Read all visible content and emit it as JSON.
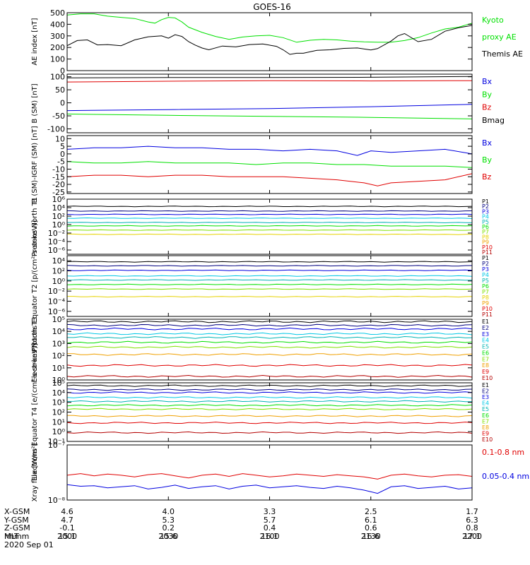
{
  "title": "GOES-16",
  "date": "2020 Sep 01",
  "colors": {
    "black": "#000000",
    "red": "#e00000",
    "green": "#00e000",
    "blue": "#0000e0",
    "navy": "#000080",
    "cyan": "#00c8e6",
    "teal": "#00b4b4",
    "lime": "#80e000",
    "yellow": "#e6d200",
    "orange": "#f0a000",
    "darkred": "#b40000"
  },
  "ephemeris": {
    "labels": [
      "X-GSM",
      "Y-GSM",
      "Z-GSM",
      "MLT",
      "hhmm"
    ],
    "ticks": [
      {
        "t": 0,
        "values": [
          "4.6",
          "4.7",
          "-0.1",
          "15.1",
          "2000"
        ]
      },
      {
        "t": 30,
        "values": [
          "4.0",
          "5.3",
          "0.2",
          "15.6",
          "2030"
        ]
      },
      {
        "t": 60,
        "values": [
          "3.3",
          "5.7",
          "0.4",
          "16.1",
          "2100"
        ]
      },
      {
        "t": 90,
        "values": [
          "2.5",
          "6.1",
          "0.6",
          "16.6",
          "2130"
        ]
      },
      {
        "t": 120,
        "values": [
          "1.7",
          "6.3",
          "0.8",
          "17.1",
          "2200"
        ]
      }
    ]
  },
  "chart_data": [
    {
      "type": "line",
      "ylabel": "AE index [nT]",
      "xlim": [
        0,
        120
      ],
      "ylim": [
        0,
        500
      ],
      "yticks": [
        0,
        100,
        200,
        300,
        400,
        500
      ],
      "legend": [
        {
          "text": "Kyoto",
          "color": "#00e000"
        },
        {
          "text": "proxy AE",
          "color": "#00e000"
        },
        {
          "text": "Themis AE",
          "color": "#000000"
        }
      ],
      "series": [
        {
          "name": "Kyoto proxy AE",
          "color": "#00e000",
          "x": [
            0,
            4,
            8,
            12,
            16,
            20,
            24,
            26,
            28,
            30,
            32,
            34,
            36,
            40,
            44,
            48,
            52,
            56,
            60,
            64,
            68,
            72,
            76,
            80,
            84,
            88,
            92,
            96,
            100,
            104,
            108,
            112,
            116,
            120
          ],
          "y": [
            480,
            490,
            490,
            470,
            460,
            450,
            420,
            410,
            440,
            460,
            455,
            420,
            375,
            330,
            295,
            270,
            290,
            300,
            305,
            285,
            245,
            262,
            270,
            265,
            255,
            248,
            245,
            245,
            260,
            285,
            325,
            360,
            375,
            410
          ]
        },
        {
          "name": "Themis AE",
          "color": "#000000",
          "x": [
            0,
            3,
            6,
            9,
            12,
            16,
            20,
            24,
            28,
            30,
            32,
            34,
            36,
            38,
            40,
            42,
            46,
            50,
            54,
            58,
            62,
            64,
            66,
            68,
            70,
            74,
            78,
            82,
            86,
            90,
            92,
            96,
            98,
            100,
            104,
            108,
            112,
            116,
            120
          ],
          "y": [
            215,
            260,
            265,
            222,
            225,
            215,
            265,
            292,
            300,
            280,
            310,
            295,
            250,
            220,
            195,
            180,
            212,
            205,
            225,
            230,
            210,
            180,
            140,
            150,
            150,
            175,
            180,
            192,
            196,
            178,
            190,
            255,
            300,
            320,
            250,
            270,
            340,
            370,
            390
          ]
        }
      ]
    },
    {
      "type": "line",
      "ylabel": "B (SM) [nT]",
      "xlim": [
        0,
        120
      ],
      "ylim": [
        -115,
        110
      ],
      "yticks": [
        -100,
        -50,
        0,
        50,
        100
      ],
      "legend": [
        {
          "text": "Bx",
          "color": "#0000e0"
        },
        {
          "text": "By",
          "color": "#00e000"
        },
        {
          "text": "Bz",
          "color": "#e00000"
        },
        {
          "text": "Bmag",
          "color": "#000000"
        }
      ],
      "series": [
        {
          "name": "Bmag",
          "color": "#000000",
          "x": [
            0,
            30,
            60,
            90,
            120
          ],
          "y": [
            96,
            97,
            97,
            98,
            101
          ]
        },
        {
          "name": "Bz",
          "color": "#e00000",
          "x": [
            0,
            30,
            60,
            90,
            120
          ],
          "y": [
            80,
            83,
            85,
            84,
            85
          ]
        },
        {
          "name": "Bx",
          "color": "#0000e0",
          "x": [
            0,
            30,
            60,
            90,
            120
          ],
          "y": [
            -30,
            -26,
            -22,
            -15,
            -6
          ]
        },
        {
          "name": "By",
          "color": "#00e000",
          "x": [
            0,
            30,
            60,
            90,
            120
          ],
          "y": [
            -43,
            -48,
            -52,
            -56,
            -62
          ]
        }
      ]
    },
    {
      "type": "line",
      "ylabel": "B (SM)-IGRF (SM) [nT]",
      "xlim": [
        0,
        120
      ],
      "ylim": [
        -26,
        12
      ],
      "yticks": [
        -25,
        -20,
        -15,
        -10,
        -5,
        0,
        5,
        10
      ],
      "legend": [
        {
          "text": "Bx",
          "color": "#0000e0"
        },
        {
          "text": "By",
          "color": "#00e000"
        },
        {
          "text": "Bz",
          "color": "#e00000"
        }
      ],
      "series": [
        {
          "name": "Bx",
          "color": "#0000e0",
          "x": [
            0,
            8,
            16,
            24,
            32,
            40,
            48,
            56,
            64,
            72,
            80,
            86,
            90,
            96,
            104,
            112,
            120
          ],
          "y": [
            3,
            4,
            4,
            5,
            4,
            4,
            3,
            3,
            2,
            3,
            2,
            -1,
            2,
            1,
            2,
            3,
            0
          ]
        },
        {
          "name": "By",
          "color": "#00e000",
          "x": [
            0,
            8,
            16,
            24,
            32,
            40,
            48,
            56,
            64,
            72,
            80,
            88,
            96,
            104,
            112,
            120
          ],
          "y": [
            -5,
            -6,
            -6,
            -5,
            -6,
            -6,
            -6,
            -7,
            -6,
            -6,
            -7,
            -7,
            -8,
            -8,
            -8,
            -9
          ]
        },
        {
          "name": "Bz",
          "color": "#e00000",
          "x": [
            0,
            8,
            16,
            24,
            32,
            40,
            48,
            56,
            64,
            72,
            80,
            88,
            92,
            96,
            104,
            112,
            120
          ],
          "y": [
            -15,
            -14,
            -14,
            -15,
            -14,
            -14,
            -15,
            -15,
            -15,
            -16,
            -17,
            -19,
            -21,
            -19,
            -18,
            -17,
            -13
          ]
        }
      ]
    },
    {
      "type": "line",
      "ylabel": "Protons North T1",
      "xlim": [
        0,
        120
      ],
      "log": true,
      "ylim": [
        -7,
        6
      ],
      "yticks": [
        -6,
        -4,
        -2,
        0,
        2,
        4,
        6
      ],
      "legend": [
        {
          "text": "P1",
          "color": "#000000"
        },
        {
          "text": "P2",
          "color": "#000080"
        },
        {
          "text": "P3",
          "color": "#0000e0"
        },
        {
          "text": "P4",
          "color": "#00c8e6"
        },
        {
          "text": "P5",
          "color": "#00b4b4"
        },
        {
          "text": "P6",
          "color": "#00e000"
        },
        {
          "text": "P7",
          "color": "#80e000"
        },
        {
          "text": "P8",
          "color": "#e6d200"
        },
        {
          "text": "P9",
          "color": "#f0a000"
        },
        {
          "text": "P10",
          "color": "#e00000"
        },
        {
          "text": "P11",
          "color": "#b40000"
        }
      ],
      "series": [
        {
          "name": "P1",
          "color": "#000000",
          "level": 4.3
        },
        {
          "name": "P2",
          "color": "#000080",
          "level": 3.2
        },
        {
          "name": "P3",
          "color": "#0000e0",
          "level": 2.4
        },
        {
          "name": "P4",
          "color": "#00c8e6",
          "level": 1.5
        },
        {
          "name": "P5",
          "color": "#00b4b4",
          "level": 0.5
        },
        {
          "name": "P6",
          "color": "#00e000",
          "level": -0.3
        },
        {
          "name": "P7",
          "color": "#80e000",
          "level": -1.3
        },
        {
          "name": "P8",
          "color": "#e6d200",
          "level": -2.3
        }
      ]
    },
    {
      "type": "line",
      "ylabel": "Protons Equator T2 [p/(cm²-s-sr-keV)]",
      "xlim": [
        0,
        120
      ],
      "log": true,
      "ylim": [
        -7,
        5
      ],
      "yticks": [
        -6,
        -4,
        -2,
        0,
        2,
        4
      ],
      "legend": [
        {
          "text": "P1",
          "color": "#000000"
        },
        {
          "text": "P2",
          "color": "#000080"
        },
        {
          "text": "P3",
          "color": "#0000e0"
        },
        {
          "text": "P4",
          "color": "#00c8e6"
        },
        {
          "text": "P5",
          "color": "#00b4b4"
        },
        {
          "text": "P6",
          "color": "#00e000"
        },
        {
          "text": "P7",
          "color": "#80e000"
        },
        {
          "text": "P8",
          "color": "#e6d200"
        },
        {
          "text": "P9",
          "color": "#f0a000"
        },
        {
          "text": "P10",
          "color": "#e00000"
        },
        {
          "text": "P11",
          "color": "#b40000"
        }
      ],
      "series": [
        {
          "name": "P1",
          "color": "#000000",
          "level": 3.8
        },
        {
          "name": "P2",
          "color": "#000080",
          "level": 3.0
        },
        {
          "name": "P3",
          "color": "#0000e0",
          "level": 2.1
        },
        {
          "name": "P4",
          "color": "#00c8e6",
          "level": 1.0
        },
        {
          "name": "P5",
          "color": "#00b4b4",
          "level": 0.2
        },
        {
          "name": "P6",
          "color": "#00e000",
          "level": -0.7
        },
        {
          "name": "P7",
          "color": "#80e000",
          "level": -1.6
        },
        {
          "name": "P8",
          "color": "#e6d200",
          "level": -3.1
        }
      ]
    },
    {
      "type": "line",
      "ylabel": "Electrons North T3",
      "xlim": [
        0,
        120
      ],
      "log": true,
      "ylim": [
        0,
        5
      ],
      "yticks": [
        0,
        1,
        2,
        3,
        4,
        5
      ],
      "legend": [
        {
          "text": "E1",
          "color": "#000000"
        },
        {
          "text": "E2",
          "color": "#000080"
        },
        {
          "text": "E3",
          "color": "#0000e0"
        },
        {
          "text": "E4",
          "color": "#00c8e6"
        },
        {
          "text": "E5",
          "color": "#00b4b4"
        },
        {
          "text": "E6",
          "color": "#00e000"
        },
        {
          "text": "E7",
          "color": "#80e000"
        },
        {
          "text": "E8",
          "color": "#f0a000"
        },
        {
          "text": "E9",
          "color": "#e00000"
        },
        {
          "text": "E10",
          "color": "#b40000"
        }
      ],
      "series": [
        {
          "name": "E1",
          "color": "#000000",
          "level": 4.8
        },
        {
          "name": "E2",
          "color": "#000080",
          "level": 4.5
        },
        {
          "name": "E3",
          "color": "#0000e0",
          "level": 4.2
        },
        {
          "name": "E4",
          "color": "#00c8e6",
          "level": 3.8
        },
        {
          "name": "E5",
          "color": "#00b4b4",
          "level": 3.5
        },
        {
          "name": "E6",
          "color": "#00e000",
          "level": 3.1
        },
        {
          "name": "E7",
          "color": "#80e000",
          "level": 2.7
        },
        {
          "name": "E8",
          "color": "#f0a000",
          "level": 2.1
        },
        {
          "name": "E9",
          "color": "#e00000",
          "level": 1.2
        },
        {
          "name": "E10",
          "color": "#b40000",
          "level": 0.3
        }
      ]
    },
    {
      "type": "line",
      "ylabel": "Electrons Equator T4 [e/(cm²-s-sr-keV)]",
      "xlim": [
        0,
        120
      ],
      "log": true,
      "ylim": [
        -1,
        5
      ],
      "yticks": [
        -1,
        0,
        1,
        2,
        3,
        4,
        5
      ],
      "legend": [
        {
          "text": "E1",
          "color": "#000000"
        },
        {
          "text": "E2",
          "color": "#000080"
        },
        {
          "text": "E3",
          "color": "#0000e0"
        },
        {
          "text": "E4",
          "color": "#00c8e6"
        },
        {
          "text": "E5",
          "color": "#00b4b4"
        },
        {
          "text": "E6",
          "color": "#00e000"
        },
        {
          "text": "E7",
          "color": "#80e000"
        },
        {
          "text": "E8",
          "color": "#f0a000"
        },
        {
          "text": "E9",
          "color": "#e00000"
        },
        {
          "text": "E10",
          "color": "#b40000"
        }
      ],
      "series": [
        {
          "name": "E1",
          "color": "#000000",
          "level": 4.7
        },
        {
          "name": "E2",
          "color": "#000080",
          "level": 4.3
        },
        {
          "name": "E3",
          "color": "#0000e0",
          "level": 4.0
        },
        {
          "name": "E4",
          "color": "#00c8e6",
          "level": 3.5
        },
        {
          "name": "E5",
          "color": "#00b4b4",
          "level": 3.1
        },
        {
          "name": "E6",
          "color": "#00e000",
          "level": 2.7
        },
        {
          "name": "E7",
          "color": "#80e000",
          "level": 2.3
        },
        {
          "name": "E8",
          "color": "#f0a000",
          "level": 1.6
        },
        {
          "name": "E9",
          "color": "#e00000",
          "level": 0.9
        },
        {
          "name": "E10",
          "color": "#b40000",
          "level": -0.1
        }
      ]
    },
    {
      "type": "line",
      "ylabel": "Xray flux [W/m²]",
      "xlim": [
        0,
        120
      ],
      "log": true,
      "ylim": [
        -8,
        -7
      ],
      "yticks": [
        -8,
        -7
      ],
      "yticklabels": [
        "10⁻⁸",
        "10⁻⁷"
      ],
      "legend": [
        {
          "text": "0.1-0.8 nm",
          "color": "#e00000"
        },
        {
          "text": "0.05-0.4 nm",
          "color": "#0000e0"
        }
      ],
      "series": [
        {
          "name": "0.1-0.8 nm",
          "color": "#e00000",
          "x": [
            0,
            4,
            8,
            12,
            16,
            20,
            24,
            28,
            32,
            36,
            40,
            44,
            48,
            52,
            56,
            60,
            64,
            68,
            72,
            76,
            80,
            84,
            88,
            92,
            96,
            100,
            104,
            108,
            112,
            116,
            120
          ],
          "y": [
            -7.55,
            -7.52,
            -7.56,
            -7.53,
            -7.55,
            -7.58,
            -7.54,
            -7.52,
            -7.56,
            -7.6,
            -7.55,
            -7.53,
            -7.57,
            -7.52,
            -7.55,
            -7.58,
            -7.56,
            -7.53,
            -7.55,
            -7.57,
            -7.54,
            -7.56,
            -7.58,
            -7.62,
            -7.55,
            -7.53,
            -7.56,
            -7.58,
            -7.55,
            -7.54,
            -7.57
          ]
        },
        {
          "name": "0.05-0.4 nm",
          "color": "#0000e0",
          "x": [
            0,
            4,
            8,
            12,
            16,
            20,
            24,
            28,
            32,
            36,
            40,
            44,
            48,
            52,
            56,
            60,
            64,
            68,
            72,
            76,
            80,
            84,
            88,
            92,
            96,
            100,
            104,
            108,
            112,
            116,
            120
          ],
          "y": [
            -7.72,
            -7.75,
            -7.74,
            -7.78,
            -7.76,
            -7.74,
            -7.8,
            -7.77,
            -7.73,
            -7.79,
            -7.76,
            -7.74,
            -7.8,
            -7.75,
            -7.73,
            -7.78,
            -7.76,
            -7.74,
            -7.77,
            -7.79,
            -7.75,
            -7.78,
            -7.82,
            -7.88,
            -7.76,
            -7.74,
            -7.79,
            -7.77,
            -7.75,
            -7.8,
            -7.78
          ]
        }
      ]
    }
  ]
}
